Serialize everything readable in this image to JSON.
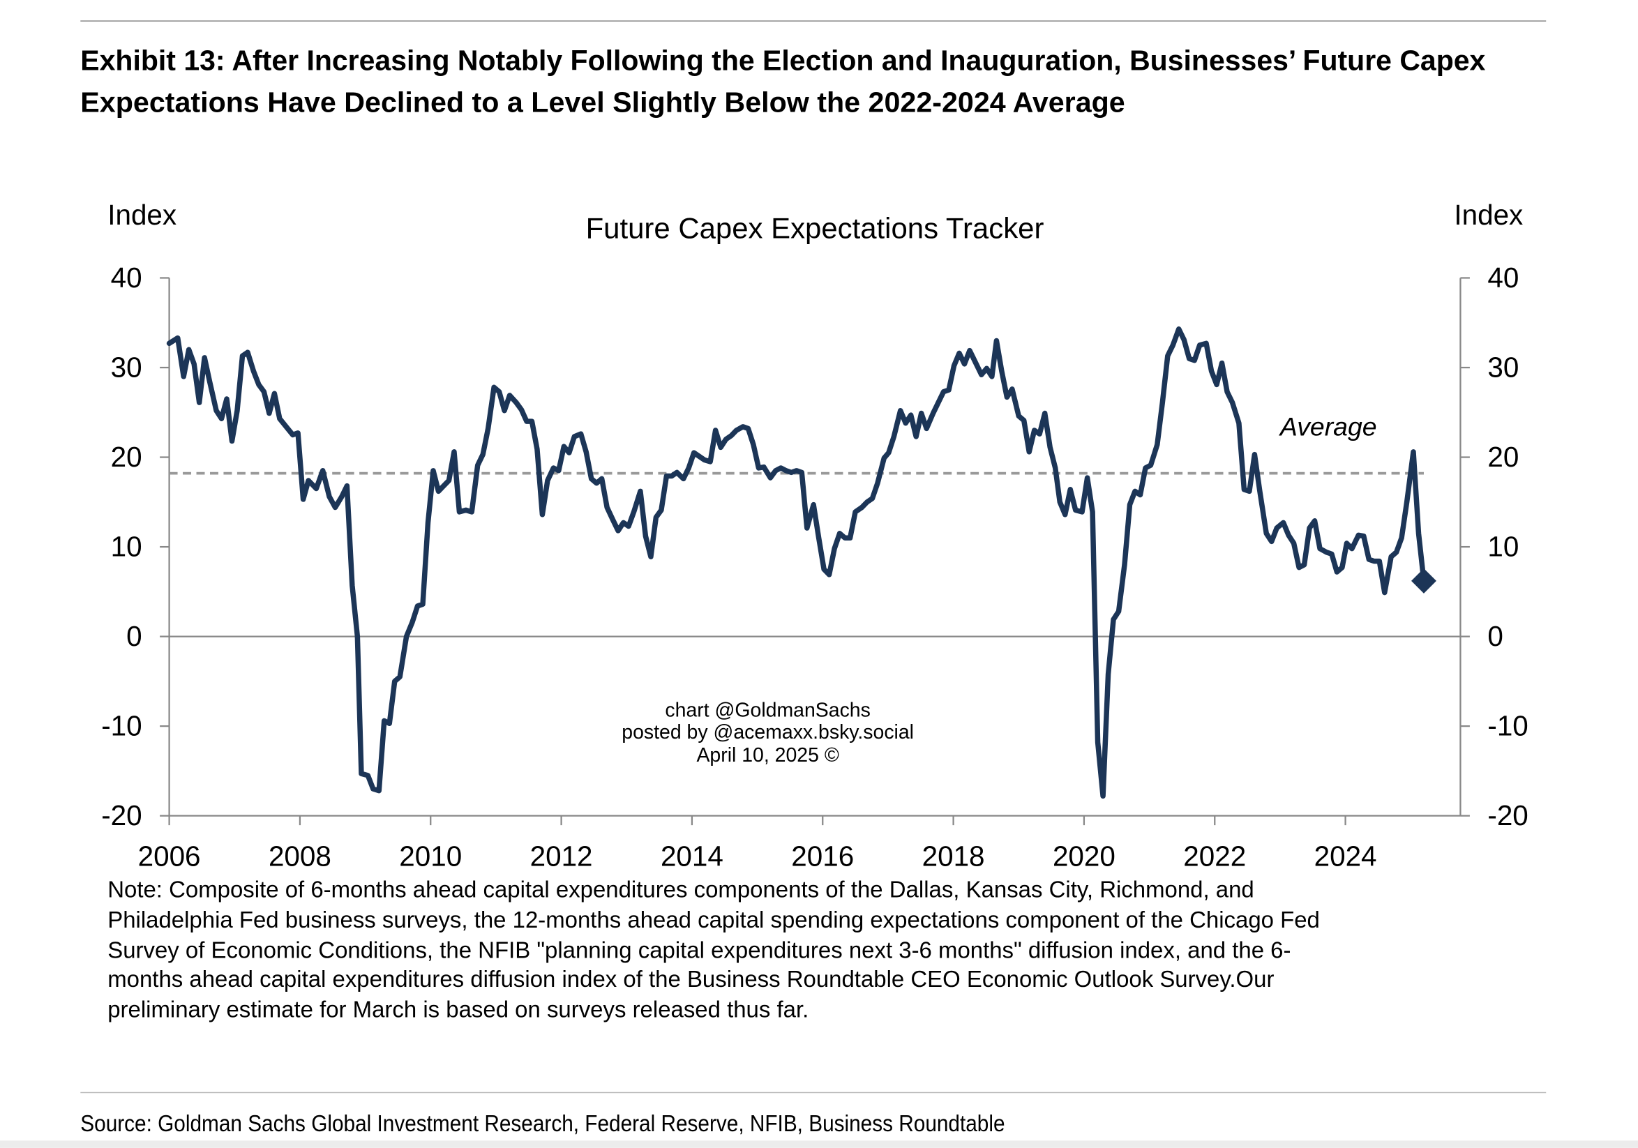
{
  "exhibit_title": [
    "Exhibit 13: After Increasing Notably Following the Election and Inauguration, Businesses’ Future Capex",
    "Expectations Have Declined to a Level Slightly Below the 2022-2024 Average"
  ],
  "chart_data": {
    "type": "line",
    "title": "Future Capex Expectations Tracker",
    "y_label": "Index",
    "y2_label": "Index",
    "color": "#1c3557",
    "x": [
      2006.0,
      2006.13,
      2006.22,
      2006.3,
      2006.38,
      2006.46,
      2006.54,
      2006.62,
      2006.72,
      2006.8,
      2006.88,
      2006.96,
      2007.04,
      2007.12,
      2007.2,
      2007.29,
      2007.37,
      2007.45,
      2007.53,
      2007.61,
      2007.69,
      2007.79,
      2007.89,
      2007.97,
      2008.05,
      2008.13,
      2008.25,
      2008.35,
      2008.45,
      2008.54,
      2008.64,
      2008.72,
      2008.8,
      2008.88,
      2008.94,
      2009.04,
      2009.12,
      2009.21,
      2009.29,
      2009.37,
      2009.45,
      2009.53,
      2009.63,
      2009.72,
      2009.8,
      2009.88,
      2009.96,
      2010.04,
      2010.12,
      2010.28,
      2010.36,
      2010.44,
      2010.54,
      2010.63,
      2010.72,
      2010.8,
      2010.88,
      2010.97,
      2011.05,
      2011.13,
      2011.21,
      2011.31,
      2011.39,
      2011.47,
      2011.55,
      2011.63,
      2011.71,
      2011.79,
      2011.88,
      2011.96,
      2012.04,
      2012.12,
      2012.2,
      2012.3,
      2012.38,
      2012.46,
      2012.54,
      2012.62,
      2012.7,
      2012.79,
      2012.87,
      2012.95,
      2013.03,
      2013.11,
      2013.21,
      2013.29,
      2013.37,
      2013.45,
      2013.53,
      2013.61,
      2013.69,
      2013.77,
      2013.87,
      2013.95,
      2014.03,
      2014.11,
      2014.19,
      2014.28,
      2014.36,
      2014.44,
      2014.52,
      2014.6,
      2014.68,
      2014.78,
      2014.86,
      2014.94,
      2015.02,
      2015.1,
      2015.2,
      2015.28,
      2015.36,
      2015.44,
      2015.52,
      2015.6,
      2015.68,
      2015.76,
      2015.86,
      2015.94,
      2016.02,
      2016.1,
      2016.18,
      2016.26,
      2016.34,
      2016.42,
      2016.5,
      2016.6,
      2016.68,
      2016.76,
      2016.84,
      2016.94,
      2017.01,
      2017.09,
      2017.19,
      2017.27,
      2017.35,
      2017.43,
      2017.51,
      2017.59,
      2017.69,
      2017.77,
      2017.85,
      2017.93,
      2018.01,
      2018.09,
      2018.17,
      2018.25,
      2018.35,
      2018.43,
      2018.51,
      2018.59,
      2018.66,
      2018.74,
      2018.82,
      2018.9,
      2019.0,
      2019.08,
      2019.16,
      2019.24,
      2019.32,
      2019.4,
      2019.48,
      2019.56,
      2019.63,
      2019.71,
      2019.79,
      2019.87,
      2019.97,
      2020.05,
      2020.13,
      2020.21,
      2020.29,
      2020.37,
      2020.45,
      2020.53,
      2020.62,
      2020.7,
      2020.78,
      2020.86,
      2020.94,
      2021.02,
      2021.12,
      2021.2,
      2021.28,
      2021.36,
      2021.45,
      2021.53,
      2021.61,
      2021.69,
      2021.77,
      2021.87,
      2021.95,
      2022.03,
      2022.11,
      2022.19,
      2022.27,
      2022.37,
      2022.45,
      2022.53,
      2022.61,
      2022.69,
      2022.79,
      2022.87,
      2022.95,
      2023.05,
      2023.13,
      2023.21,
      2023.29,
      2023.37,
      2023.45,
      2023.53,
      2023.61,
      2023.71,
      2023.79,
      2023.87,
      2023.95,
      2024.02,
      2024.1,
      2024.2,
      2024.28,
      2024.36,
      2024.44,
      2024.52,
      2024.6,
      2024.7,
      2024.78,
      2024.86,
      2024.94,
      2025.04,
      2025.12,
      2025.2
    ],
    "values": [
      32.7,
      33.3,
      29,
      32,
      30.4,
      26.1,
      31.1,
      28.4,
      25.2,
      24.3,
      26.5,
      21.8,
      25.2,
      31.3,
      31.7,
      29.6,
      28.1,
      27.3,
      24.9,
      27.1,
      24.3,
      23.4,
      22.5,
      22.7,
      15.3,
      17.4,
      16.5,
      18.5,
      15.6,
      14.4,
      15.6,
      16.8,
      5.7,
      0,
      -15.3,
      -15.5,
      -17,
      -17.2,
      -9.4,
      -9.7,
      -5,
      -4.5,
      0,
      1.6,
      3.4,
      3.6,
      12.7,
      18.5,
      16.2,
      17.4,
      20.6,
      13.9,
      14.1,
      13.9,
      19.1,
      20.3,
      23.2,
      27.8,
      27.3,
      25.2,
      26.9,
      26.1,
      25.3,
      24,
      24,
      20.9,
      13.6,
      17.4,
      18.8,
      18.5,
      21.2,
      20.5,
      22.3,
      22.6,
      20.6,
      17.6,
      17.1,
      17.6,
      14.4,
      13,
      11.8,
      12.7,
      12.3,
      13.9,
      16.2,
      11.2,
      8.9,
      13.3,
      14.1,
      17.9,
      17.9,
      18.3,
      17.6,
      18.8,
      20.5,
      20.1,
      19.7,
      19.5,
      23,
      21.1,
      22,
      22.4,
      23,
      23.4,
      23.2,
      21.4,
      18.8,
      18.9,
      17.7,
      18.5,
      18.8,
      18.5,
      18.3,
      18.5,
      18.3,
      12.1,
      14.7,
      11,
      7.5,
      6.9,
      9.8,
      11.5,
      11,
      11,
      13.9,
      14.4,
      15,
      15.4,
      17.1,
      19.9,
      20.5,
      22.3,
      25.2,
      23.8,
      24.7,
      22.3,
      24.9,
      23.2,
      24.9,
      26.1,
      27.3,
      27.5,
      30.2,
      31.6,
      30.4,
      31.9,
      30.4,
      29.2,
      29.9,
      29,
      33,
      29.6,
      26.7,
      27.6,
      24.6,
      24.1,
      20.6,
      23,
      22.6,
      24.9,
      21.1,
      18.8,
      15,
      13.6,
      16.4,
      14.1,
      13.9,
      17.7,
      13.9,
      -11.8,
      -17.8,
      -4.2,
      1.9,
      2.8,
      8,
      14.7,
      16.2,
      15.8,
      18.8,
      19.1,
      21.4,
      26.1,
      31.3,
      32.5,
      34.3,
      33.1,
      31,
      30.8,
      32.5,
      32.7,
      29.6,
      28.1,
      30.5,
      27.3,
      26.1,
      23.8,
      16.4,
      16.2,
      20.3,
      16.2,
      11.5,
      10.6,
      12.1,
      12.7,
      11.3,
      10.4,
      7.7,
      8,
      12.1,
      12.9,
      9.8,
      9.4,
      9.2,
      7.2,
      7.7,
      10.4,
      9.8,
      11.3,
      11.2,
      8.6,
      8.4,
      8.4,
      4.9,
      8.9,
      9.4,
      11,
      15,
      20.6,
      11.5,
      6.2
    ],
    "xlim": [
      2006,
      2025.76
    ],
    "xticks": [
      2006,
      2008,
      2010,
      2012,
      2014,
      2016,
      2018,
      2020,
      2022,
      2024
    ],
    "ylim": [
      -20,
      40
    ],
    "yticks": [
      -20,
      -10,
      0,
      10,
      20,
      30,
      40
    ],
    "y2lim": [
      -20,
      40
    ],
    "y2ticks": [
      -20,
      -10,
      0,
      10,
      20,
      30,
      40
    ],
    "average": {
      "value": 18.2,
      "label": "Average"
    },
    "watermark": [
      "chart @GoldmanSachs",
      "posted by @acemaxx.bsky.social",
      "April 10, 2025 ©"
    ]
  },
  "note": [
    "Note: Composite of 6-months ahead capital expenditures components of the Dallas, Kansas City, Richmond, and",
    "Philadelphia Fed business surveys, the 12-months ahead capital spending expectations component of the Chicago Fed",
    "Survey of Economic Conditions, the NFIB \"planning capital expenditures next 3-6 months\" diffusion index, and the 6-",
    "months ahead capital expenditures diffusion index of the Business Roundtable CEO Economic Outlook Survey.Our",
    "preliminary estimate for March is based on surveys released thus far."
  ],
  "source": "Source: Goldman Sachs Global Investment Research, Federal Reserve, NFIB, Business Roundtable"
}
